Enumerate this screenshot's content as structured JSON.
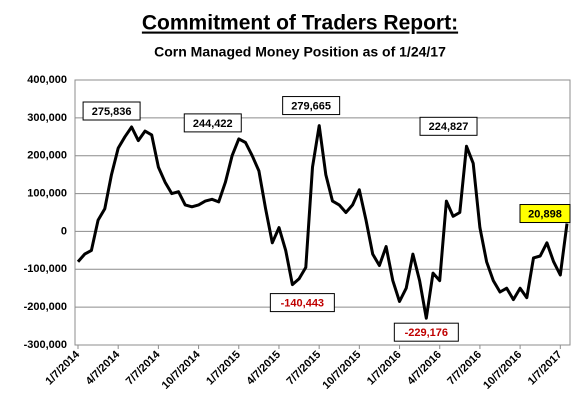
{
  "chart_data": {
    "type": "line",
    "title": "Commitment of Traders Report:",
    "subtitle": "Corn Managed Money Position as of 1/24/17",
    "color": "#000000",
    "grid": true,
    "categories": [
      "1/7/2014",
      null,
      null,
      null,
      null,
      null,
      "4/7/2014",
      null,
      null,
      null,
      null,
      null,
      "7/7/2014",
      null,
      null,
      null,
      null,
      null,
      "10/7/2014",
      null,
      null,
      null,
      null,
      null,
      "1/7/2015",
      null,
      null,
      null,
      null,
      null,
      "4/7/2015",
      null,
      null,
      null,
      null,
      null,
      "7/7/2015",
      null,
      null,
      null,
      null,
      null,
      "10/7/2015",
      null,
      null,
      null,
      null,
      null,
      "1/7/2016",
      null,
      null,
      null,
      null,
      null,
      "4/7/2016",
      null,
      null,
      null,
      null,
      null,
      "7/7/2016",
      null,
      null,
      null,
      null,
      null,
      "10/7/2016",
      null,
      null,
      null,
      null,
      null,
      "1/7/2017",
      null
    ],
    "values": [
      -80000,
      -60000,
      -50000,
      30000,
      60000,
      150000,
      220000,
      250000,
      275836,
      240000,
      265000,
      255000,
      170000,
      130000,
      100000,
      105000,
      70000,
      65000,
      70000,
      80000,
      85000,
      78000,
      130000,
      200000,
      244422,
      235000,
      200000,
      160000,
      60000,
      -30000,
      10000,
      -50000,
      -140443,
      -125000,
      -95000,
      170000,
      279665,
      150000,
      80000,
      70000,
      50000,
      70000,
      110000,
      30000,
      -60000,
      -90000,
      -40000,
      -130000,
      -185000,
      -150000,
      -60000,
      -130000,
      -229176,
      -110000,
      -130000,
      80000,
      40000,
      50000,
      224827,
      180000,
      10000,
      -80000,
      -130000,
      -160000,
      -150000,
      -180000,
      -150000,
      -175000,
      -70000,
      -65000,
      -30000,
      -80000,
      -115000,
      20898
    ],
    "value_labels": [
      null,
      null,
      null,
      null,
      null,
      null,
      null,
      null,
      "275,836",
      null,
      null,
      null,
      null,
      null,
      null,
      null,
      null,
      null,
      null,
      null,
      null,
      null,
      null,
      null,
      "244,422",
      null,
      null,
      null,
      null,
      null,
      null,
      null,
      "-140,443",
      null,
      null,
      null,
      "279,665",
      null,
      null,
      null,
      null,
      null,
      null,
      null,
      null,
      null,
      null,
      null,
      null,
      null,
      null,
      null,
      "-229,176",
      null,
      null,
      null,
      null,
      null,
      "224,827",
      null,
      null,
      null,
      null,
      null,
      null,
      null,
      null,
      null,
      null,
      null,
      null,
      null,
      null,
      "20,898"
    ],
    "ylim": [
      -300000,
      400000
    ],
    "yticks": [
      {
        "value": -300000,
        "label": "-300,000"
      },
      {
        "value": -200000,
        "label": "-200,000"
      },
      {
        "value": -100000,
        "label": "-100,000"
      },
      0,
      {
        "value": 100000,
        "label": "100,000"
      },
      {
        "value": 200000,
        "label": "200,000"
      },
      {
        "value": 300000,
        "label": "300,000"
      },
      {
        "value": 400000,
        "label": "400,000"
      }
    ]
  }
}
